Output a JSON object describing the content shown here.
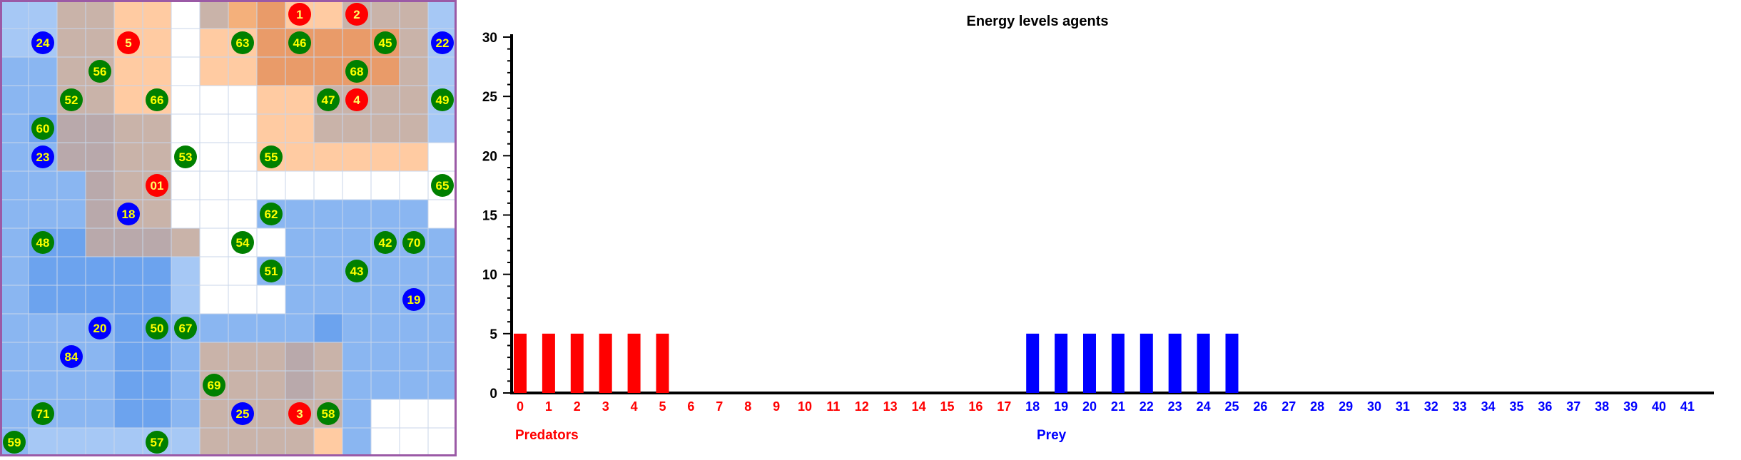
{
  "grid": {
    "columns": 16,
    "rows": 16,
    "cell_palette": {
      "W": "#ffffff",
      "L": "#a6c8f5",
      "M": "#8ab6f1",
      "D": "#6ca3ee",
      "P": "#c9b3a9",
      "Q": "#b9a9ab",
      "T": "#ffcba2",
      "O": "#f4b07b",
      "R": "#e99b69"
    },
    "cells": [
      "LLPPTTWPORTTPPPL",
      "LLPPTTWTTRRRRRPL",
      "MMPPTTWTTRRRRRPL",
      "MMPPTTWWWTTPPPPL",
      "MDQQPPWWWTTPPPPL",
      "MMQQPPWWWTTTTTTW",
      "MMMQPPWWWWWWWWWW",
      "MMMQPPWWWMMMMMMW",
      "MDDQQQPWWWMMMMMM",
      "MDDDDDLWWMMMMMMM",
      "MDDDDDLWWWMMMMMM",
      "MMMMDDMMMMMDMMMM",
      "MMMMDDMPPPQPMMMM",
      "MMMMDDMPPPQPMMMM",
      "MMMMDDMPPPPPMWWW",
      "MLLLLLLPPPPTMWWW"
    ],
    "border_color": "#9b5aa6",
    "predator_color": "#ff0000",
    "prey_color": "#0000ff",
    "food_color": "#008000",
    "label_color": "#ffff00",
    "agents": [
      {
        "label": "1",
        "kind": "predator",
        "col": 10,
        "row": 0
      },
      {
        "label": "2",
        "kind": "predator",
        "col": 12,
        "row": 0
      },
      {
        "label": "24",
        "kind": "prey",
        "col": 1,
        "row": 1
      },
      {
        "label": "5",
        "kind": "predator",
        "col": 4,
        "row": 1
      },
      {
        "label": "63",
        "kind": "food",
        "col": 8,
        "row": 1
      },
      {
        "label": "46",
        "kind": "food",
        "col": 10,
        "row": 1
      },
      {
        "label": "45",
        "kind": "food",
        "col": 13,
        "row": 1
      },
      {
        "label": "22",
        "kind": "prey",
        "col": 15,
        "row": 1
      },
      {
        "label": "56",
        "kind": "food",
        "col": 3,
        "row": 2
      },
      {
        "label": "68",
        "kind": "food",
        "col": 12,
        "row": 2
      },
      {
        "label": "52",
        "kind": "food",
        "col": 2,
        "row": 3
      },
      {
        "label": "66",
        "kind": "food",
        "col": 5,
        "row": 3
      },
      {
        "label": "47",
        "kind": "food",
        "col": 11,
        "row": 3
      },
      {
        "label": "4",
        "kind": "predator",
        "col": 12,
        "row": 3
      },
      {
        "label": "49",
        "kind": "food",
        "col": 15,
        "row": 3
      },
      {
        "label": "60",
        "kind": "food",
        "col": 1,
        "row": 4
      },
      {
        "label": "23",
        "kind": "prey",
        "col": 1,
        "row": 5
      },
      {
        "label": "53",
        "kind": "food",
        "col": 6,
        "row": 5
      },
      {
        "label": "55",
        "kind": "food",
        "col": 9,
        "row": 5
      },
      {
        "label": "01",
        "kind": "predator",
        "col": 5,
        "row": 6
      },
      {
        "label": "65",
        "kind": "food",
        "col": 15,
        "row": 6
      },
      {
        "label": "18",
        "kind": "prey",
        "col": 4,
        "row": 7
      },
      {
        "label": "62",
        "kind": "food",
        "col": 9,
        "row": 7
      },
      {
        "label": "48",
        "kind": "food",
        "col": 1,
        "row": 8
      },
      {
        "label": "54",
        "kind": "food",
        "col": 8,
        "row": 8
      },
      {
        "label": "42",
        "kind": "food",
        "col": 13,
        "row": 8
      },
      {
        "label": "70",
        "kind": "food",
        "col": 14,
        "row": 8
      },
      {
        "label": "51",
        "kind": "food",
        "col": 9,
        "row": 9
      },
      {
        "label": "43",
        "kind": "food",
        "col": 12,
        "row": 9
      },
      {
        "label": "19",
        "kind": "prey",
        "col": 14,
        "row": 10
      },
      {
        "label": "20",
        "kind": "prey",
        "col": 3,
        "row": 11
      },
      {
        "label": "50",
        "kind": "food",
        "col": 5,
        "row": 11
      },
      {
        "label": "67",
        "kind": "food",
        "col": 6,
        "row": 11
      },
      {
        "label": "84",
        "kind": "prey",
        "col": 2,
        "row": 12
      },
      {
        "label": "69",
        "kind": "food",
        "col": 7,
        "row": 13
      },
      {
        "label": "71",
        "kind": "food",
        "col": 1,
        "row": 14
      },
      {
        "label": "25",
        "kind": "prey",
        "col": 8,
        "row": 14
      },
      {
        "label": "3",
        "kind": "predator",
        "col": 10,
        "row": 14
      },
      {
        "label": "58",
        "kind": "food",
        "col": 11,
        "row": 14
      },
      {
        "label": "59",
        "kind": "food",
        "col": 0,
        "row": 15
      },
      {
        "label": "57",
        "kind": "food",
        "col": 5,
        "row": 15
      }
    ]
  },
  "chart_data": {
    "type": "bar",
    "title": "Energy levels agents",
    "ylim": [
      0,
      30
    ],
    "yticks": [
      0,
      5,
      10,
      15,
      20,
      25,
      30
    ],
    "categories": [
      "0",
      "1",
      "2",
      "3",
      "4",
      "5",
      "6",
      "7",
      "8",
      "9",
      "10",
      "11",
      "12",
      "13",
      "14",
      "15",
      "16",
      "17",
      "18",
      "19",
      "20",
      "21",
      "22",
      "23",
      "24",
      "25",
      "26",
      "27",
      "28",
      "29",
      "30",
      "31",
      "32",
      "33",
      "34",
      "35",
      "36",
      "37",
      "38",
      "39",
      "40",
      "41"
    ],
    "series": [
      {
        "name": "Predators",
        "color": "#ff0000",
        "values": [
          5,
          5,
          5,
          5,
          5,
          5,
          0,
          0,
          0,
          0,
          0,
          0,
          0,
          0,
          0,
          0,
          0,
          0,
          null,
          null,
          null,
          null,
          null,
          null,
          null,
          null,
          null,
          null,
          null,
          null,
          null,
          null,
          null,
          null,
          null,
          null,
          null,
          null,
          null,
          null,
          null,
          null
        ]
      },
      {
        "name": "Prey",
        "color": "#0000ff",
        "values": [
          null,
          null,
          null,
          null,
          null,
          null,
          null,
          null,
          null,
          null,
          null,
          null,
          null,
          null,
          null,
          null,
          null,
          null,
          5,
          5,
          5,
          5,
          5,
          5,
          5,
          5,
          0,
          0,
          0,
          0,
          0,
          0,
          0,
          0,
          0,
          0,
          0,
          0,
          0,
          0,
          0,
          0
        ]
      }
    ],
    "group_labels": {
      "predators": "Predators",
      "prey": "Prey"
    },
    "grid": false,
    "legend": "none"
  }
}
